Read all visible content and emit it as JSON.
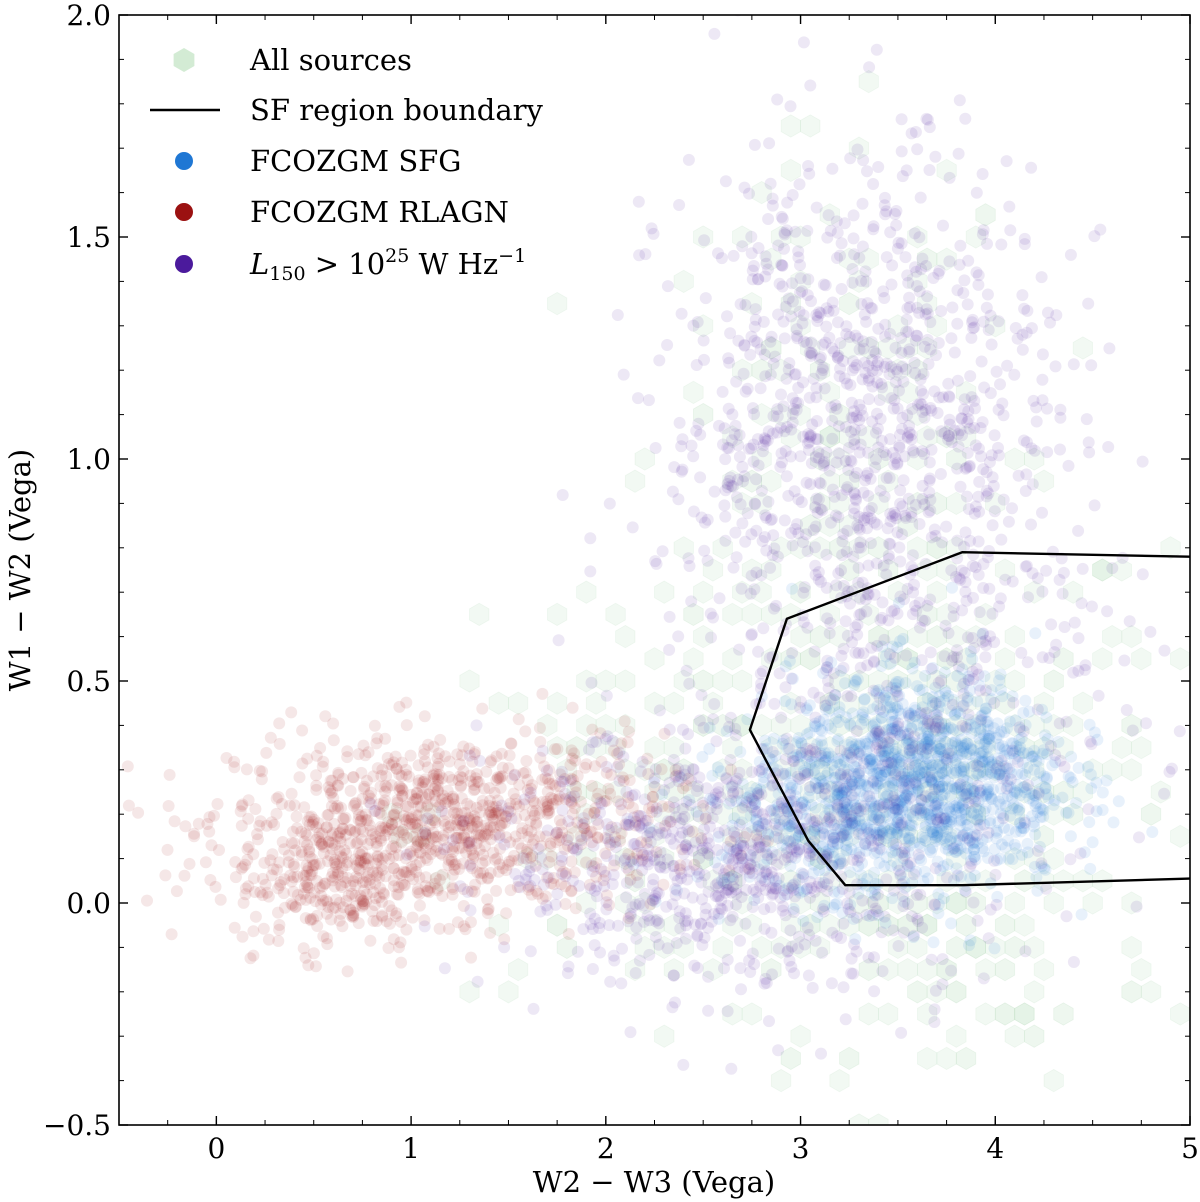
{
  "chart_data": {
    "type": "scatter",
    "title": "",
    "xlabel": "W2 − W3 (Vega)",
    "ylabel": "W1 − W2 (Vega)",
    "xlim": [
      -0.5,
      5
    ],
    "ylim": [
      -0.5,
      2.0
    ],
    "xticks": [
      0,
      1,
      2,
      3,
      4,
      5
    ],
    "yticks": [
      -0.5,
      0.0,
      0.5,
      1.0,
      1.5,
      2.0
    ],
    "xtick_labels": [
      "0",
      "1",
      "2",
      "3",
      "4",
      "5"
    ],
    "ytick_labels": [
      "−0.5",
      "0.0",
      "0.5",
      "1.0",
      "1.5",
      "2.0"
    ],
    "grid": false,
    "legend_position": "top-left",
    "legend": [
      {
        "label": "All sources",
        "marker": "hexagon",
        "color": "#c8e6c9"
      },
      {
        "label": "SF region boundary",
        "marker": "line",
        "color": "#000000"
      },
      {
        "label": "FCOZGM SFG",
        "marker": "circle",
        "color": "#1f77d4"
      },
      {
        "label": "FCOZGM RLAGN",
        "marker": "circle",
        "color": "#9b1111"
      },
      {
        "label": "L150 > 10^25 W Hz^-1",
        "marker": "circle",
        "color": "#4b1a9c"
      }
    ],
    "sf_boundary": {
      "name": "SF region boundary",
      "points": [
        [
          5.0,
          0.78
        ],
        [
          3.83,
          0.79
        ],
        [
          2.93,
          0.64
        ],
        [
          2.74,
          0.39
        ],
        [
          3.04,
          0.14
        ],
        [
          3.23,
          0.04
        ],
        [
          3.83,
          0.04
        ],
        [
          5.0,
          0.055
        ]
      ]
    },
    "series": [
      {
        "name": "All sources",
        "kind": "hexbin",
        "color": "#b8dfbc",
        "clusters": [
          {
            "x": 3.6,
            "y": 0.3,
            "sx": 0.65,
            "sy": 0.3,
            "n": 320
          },
          {
            "x": 3.2,
            "y": 1.0,
            "sx": 0.5,
            "sy": 0.35,
            "n": 150
          },
          {
            "x": 2.3,
            "y": 0.2,
            "sx": 0.6,
            "sy": 0.2,
            "n": 130
          },
          {
            "x": 3.9,
            "y": -0.15,
            "sx": 0.5,
            "sy": 0.15,
            "n": 60
          }
        ]
      },
      {
        "name": "FCOZGM RLAGN",
        "kind": "scatter",
        "color": "#9b1111",
        "clusters": [
          {
            "x": 1.2,
            "y": 0.18,
            "sx": 0.55,
            "sy": 0.1,
            "n": 900
          },
          {
            "x": 0.6,
            "y": 0.05,
            "sx": 0.25,
            "sy": 0.08,
            "n": 250
          }
        ]
      },
      {
        "name": "FCOZGM SFG",
        "kind": "scatter",
        "color": "#1f77d4",
        "clusters": [
          {
            "x": 3.65,
            "y": 0.28,
            "sx": 0.35,
            "sy": 0.12,
            "n": 1100
          },
          {
            "x": 3.1,
            "y": 0.2,
            "sx": 0.35,
            "sy": 0.1,
            "n": 350
          }
        ]
      },
      {
        "name": "L150 > 10^25 W Hz^-1",
        "kind": "scatter",
        "color": "#4b1a9c",
        "clusters": [
          {
            "x": 3.3,
            "y": 1.1,
            "sx": 0.5,
            "sy": 0.3,
            "n": 900
          },
          {
            "x": 2.6,
            "y": 0.1,
            "sx": 0.6,
            "sy": 0.14,
            "n": 700
          },
          {
            "x": 3.6,
            "y": 0.5,
            "sx": 0.6,
            "sy": 0.35,
            "n": 400
          }
        ]
      }
    ]
  }
}
